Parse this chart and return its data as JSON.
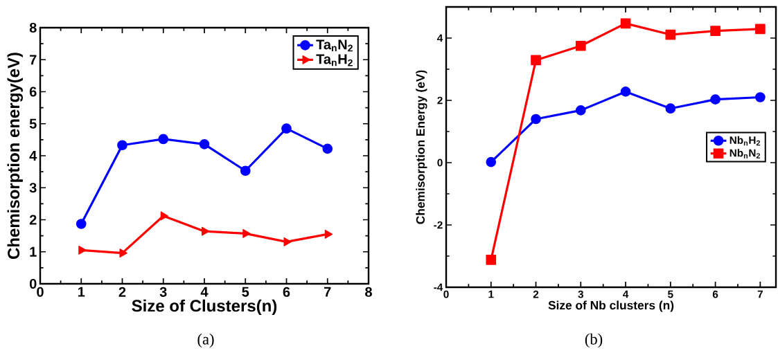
{
  "chart_data": [
    {
      "type": "line",
      "xlabel": "Size of Clusters(n)",
      "ylabel": "Chemisorption energy(eV)",
      "x": [
        1,
        2,
        3,
        4,
        5,
        6,
        7
      ],
      "series": [
        {
          "name": "Ta$_{n}$N$_{2}$",
          "color": "#0000ff",
          "marker": "circle",
          "values": [
            1.87,
            4.33,
            4.52,
            4.36,
            3.53,
            4.85,
            4.22
          ]
        },
        {
          "name": "Ta$_{n}$H$_{2}$",
          "color": "#ff0000",
          "marker": "triangle",
          "values": [
            1.05,
            0.96,
            2.12,
            1.64,
            1.57,
            1.31,
            1.55
          ]
        }
      ],
      "xlim": [
        0,
        8
      ],
      "ylim": [
        0,
        8
      ],
      "xticks": [
        0,
        1,
        2,
        3,
        4,
        5,
        6,
        7,
        8
      ],
      "yticks": [
        0,
        1,
        2,
        3,
        4,
        5,
        6,
        7,
        8
      ],
      "legend": "top right",
      "grid": false,
      "annotations": [
        "(a)"
      ]
    },
    {
      "type": "line",
      "xlabel": "Size of Nb clusters (n)",
      "ylabel": "Chemisorption Energy (eV)",
      "x": [
        1,
        2,
        3,
        4,
        5,
        6,
        7
      ],
      "series": [
        {
          "name": "Nb$_{n}$H$_{2}$",
          "color": "#0000ff",
          "marker": "circle",
          "values": [
            0.02,
            1.4,
            1.68,
            2.28,
            1.74,
            2.03,
            2.1
          ]
        },
        {
          "name": "Nb$_{n}$N$_{2}$",
          "color": "#ff0000",
          "marker": "square",
          "values": [
            -3.12,
            3.29,
            3.75,
            4.47,
            4.11,
            4.23,
            4.29
          ]
        }
      ],
      "xlim": [
        0,
        7.35
      ],
      "ylim": [
        -4,
        5
      ],
      "xticks": [
        0,
        1,
        2,
        3,
        4,
        5,
        6,
        7
      ],
      "yticks": [
        -4,
        -2,
        0,
        2,
        4
      ],
      "legend": "right",
      "grid": false,
      "annotations": [
        "(b)"
      ]
    }
  ]
}
